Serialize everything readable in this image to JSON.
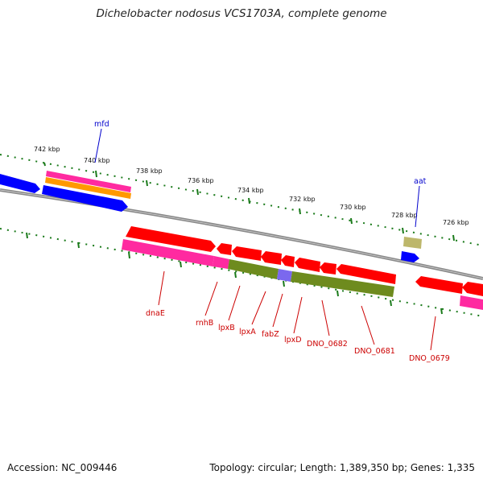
{
  "title": "Dichelobacter nodosus VCS1703A, complete genome",
  "footer": {
    "accession": "Accession: NC_009446",
    "info": "Topology: circular; Length: 1,389,350 bp; Genes: 1,335"
  },
  "scale_labels": [
    "742 kbp",
    "740 kbp",
    "738 kbp",
    "736 kbp",
    "734 kbp",
    "732 kbp",
    "730 kbp",
    "728 kbp",
    "726 kbp"
  ],
  "gene_labels": {
    "mfd": "mfd",
    "aat": "aat",
    "dnaE": "dnaE",
    "rnhB": "rnhB",
    "lpxB": "lpxB",
    "lpxA": "lpxA",
    "fabZ": "fabZ",
    "lpxD": "lpxD",
    "DNO_0682": "DNO_0682",
    "DNO_0681": "DNO_0681",
    "DNO_0679": "DNO_0679"
  },
  "colors": {
    "cds_red": "#ff0000",
    "rna_magenta": "#ff2aa0",
    "forward_blue": "#0000ff",
    "orange": "#ff9900",
    "olive": "#6e8b1e",
    "purple": "#7b68ee",
    "khaki": "#bdb76b",
    "backbone": "#777777",
    "tick_green": "#1a7a1a",
    "label_red": "#cc0000",
    "label_blue": "#0000cc"
  }
}
